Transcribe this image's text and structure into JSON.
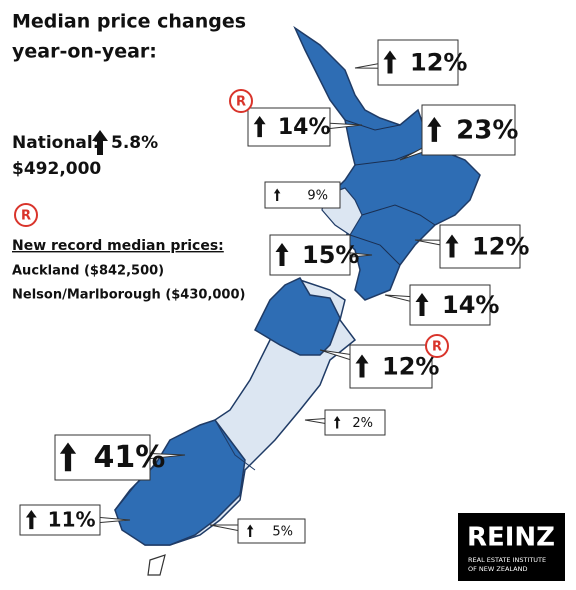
{
  "title": [
    "Median price changes",
    "year-on-year:"
  ],
  "national": {
    "label": "National:",
    "change": "5.8%",
    "price": "$492,000"
  },
  "record": {
    "badge": "R",
    "heading": "New record median prices:",
    "items": [
      "Auckland ($842,500)",
      "Nelson/Marlborough ($430,000)"
    ]
  },
  "callouts": [
    {
      "change": "12%"
    },
    {
      "change": "14%",
      "record": "R"
    },
    {
      "change": "23%"
    },
    {
      "change": "9%"
    },
    {
      "change": "15%"
    },
    {
      "change": "12%"
    },
    {
      "change": "14%"
    },
    {
      "change": "12%",
      "record": "R"
    },
    {
      "change": "2%"
    },
    {
      "change": "41%"
    },
    {
      "change": "11%"
    },
    {
      "change": "5%"
    }
  ],
  "logo": {
    "name": "REINZ",
    "line1": "REAL ESTATE INSTITUTE",
    "line2": "OF NEW ZEALAND"
  }
}
